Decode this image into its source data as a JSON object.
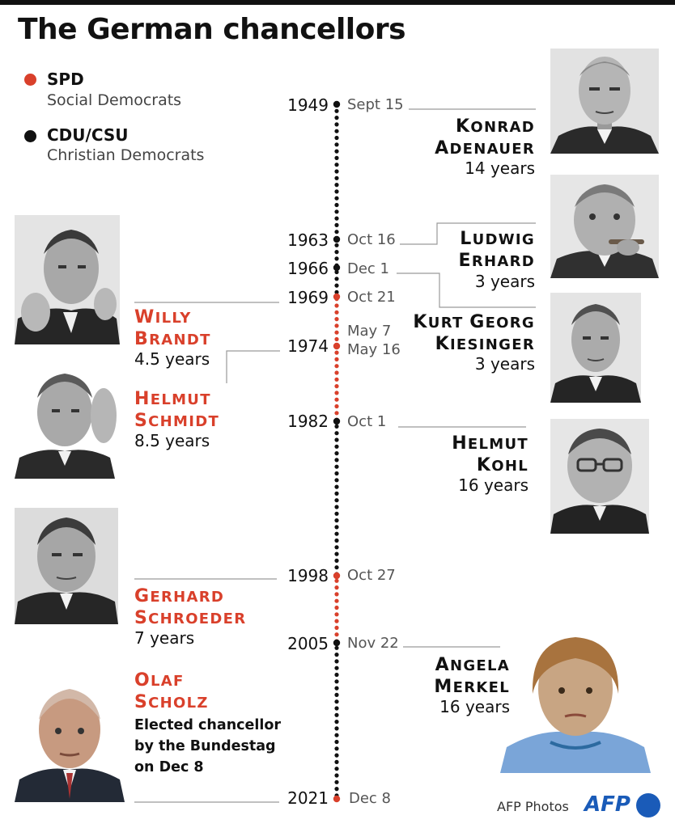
{
  "title": "The German chancellors",
  "legend": [
    {
      "abbr": "SPD",
      "full": "Social Democrats",
      "color": "#d9402b"
    },
    {
      "abbr": "CDU/CSU",
      "full": "Christian Democrats",
      "color": "#111111"
    }
  ],
  "colors": {
    "spd": "#d9402b",
    "cdu": "#111111",
    "connector": "#9a9a9a",
    "afp": "#1a5bb8"
  },
  "timeline": {
    "marks": [
      {
        "year": "1949",
        "date": "Sept 15"
      },
      {
        "year": "1963",
        "date": "Oct 16"
      },
      {
        "year": "1966",
        "date": "Dec 1"
      },
      {
        "year": "1969",
        "date": "Oct 21"
      },
      {
        "year": "",
        "date": "May 7"
      },
      {
        "year": "1974",
        "date": "May 16"
      },
      {
        "year": "1982",
        "date": "Oct 1"
      },
      {
        "year": "1998",
        "date": "Oct 27"
      },
      {
        "year": "2005",
        "date": "Nov 22"
      },
      {
        "year": "2021",
        "date": "Dec 8"
      }
    ]
  },
  "chancellors": [
    {
      "first": "Konrad",
      "last": "Adenauer",
      "tenure": "14 years",
      "party": "CDU/CSU",
      "side": "right",
      "icon": "portrait-adenauer-icon"
    },
    {
      "first": "Ludwig",
      "last": "Erhard",
      "tenure": "3 years",
      "party": "CDU/CSU",
      "side": "right",
      "icon": "portrait-erhard-icon"
    },
    {
      "first": "Kurt Georg",
      "last": "Kiesinger",
      "tenure": "3 years",
      "party": "CDU/CSU",
      "side": "right",
      "icon": "portrait-kiesinger-icon"
    },
    {
      "first": "Willy",
      "last": "Brandt",
      "tenure": "4.5 years",
      "party": "SPD",
      "side": "left",
      "icon": "portrait-brandt-icon"
    },
    {
      "first": "Helmut",
      "last": "Schmidt",
      "tenure": "8.5 years",
      "party": "SPD",
      "side": "left",
      "icon": "portrait-schmidt-icon"
    },
    {
      "first": "Helmut",
      "last": "Kohl",
      "tenure": "16 years",
      "party": "CDU/CSU",
      "side": "right",
      "icon": "portrait-kohl-icon"
    },
    {
      "first": "Gerhard",
      "last": "Schroeder",
      "tenure": "7 years",
      "party": "SPD",
      "side": "left",
      "icon": "portrait-schroeder-icon"
    },
    {
      "first": "Angela",
      "last": "Merkel",
      "tenure": "16 years",
      "party": "CDU/CSU",
      "side": "right",
      "icon": "portrait-merkel-icon"
    },
    {
      "first": "Olaf",
      "last": "Scholz",
      "tenure": "",
      "party": "SPD",
      "side": "left",
      "icon": "portrait-scholz-icon"
    }
  ],
  "scholz_note": "Elected chancellor by the Bundestag on Dec 8",
  "credit": "AFP Photos",
  "logo": {
    "text": "AFP",
    "icon": "afp-logo-icon"
  }
}
